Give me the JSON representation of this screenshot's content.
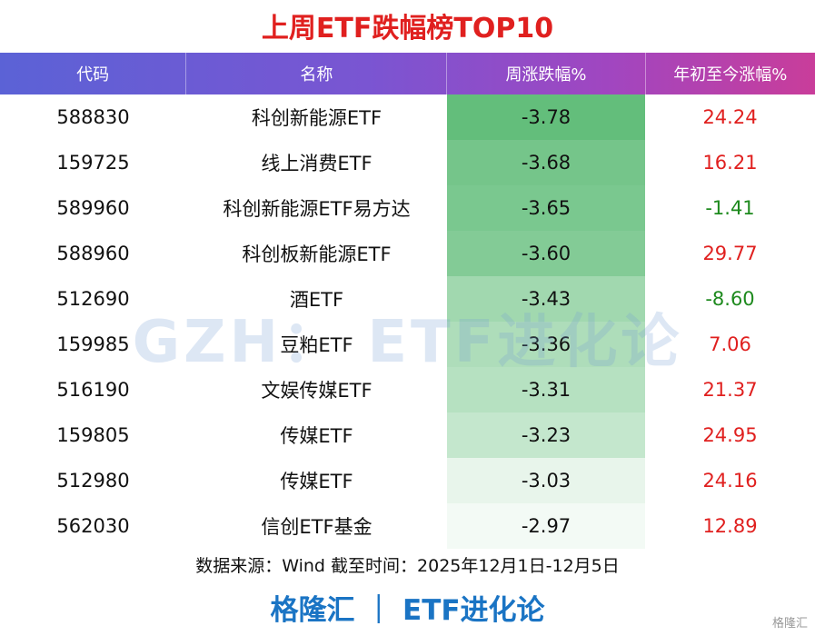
{
  "header": {
    "title": "上周ETF跌幅榜TOP10"
  },
  "table": {
    "columns": [
      "代码",
      "名称",
      "周涨跌幅%",
      "年初至今涨幅%"
    ],
    "rows": [
      [
        "588830",
        "科创新能源ETF",
        "-3.78",
        "24.24"
      ],
      [
        "159725",
        "线上消费ETF",
        "-3.68",
        "16.21"
      ],
      [
        "589960",
        "科创新能源ETF易方达",
        "-3.65",
        "-1.41"
      ],
      [
        "588960",
        "科创板新能源ETF",
        "-3.60",
        "29.77"
      ],
      [
        "512690",
        "酒ETF",
        "-3.43",
        "-8.60"
      ],
      [
        "159985",
        "豆粕ETF",
        "-3.36",
        "7.06"
      ],
      [
        "516190",
        "文娱传媒ETF",
        "-3.31",
        "21.37"
      ],
      [
        "159805",
        "传媒ETF",
        "-3.23",
        "24.95"
      ],
      [
        "512980",
        "传媒ETF",
        "-3.03",
        "24.16"
      ],
      [
        "562030",
        "信创ETF基金",
        "-2.97",
        "12.89"
      ]
    ]
  },
  "watermark": "GZH： ETF进化论",
  "source": "数据来源：Wind 截至时间：2025年12月1日-12月5日",
  "footer": "格隆汇 ｜ ETF进化论",
  "logo": "格隆汇"
}
